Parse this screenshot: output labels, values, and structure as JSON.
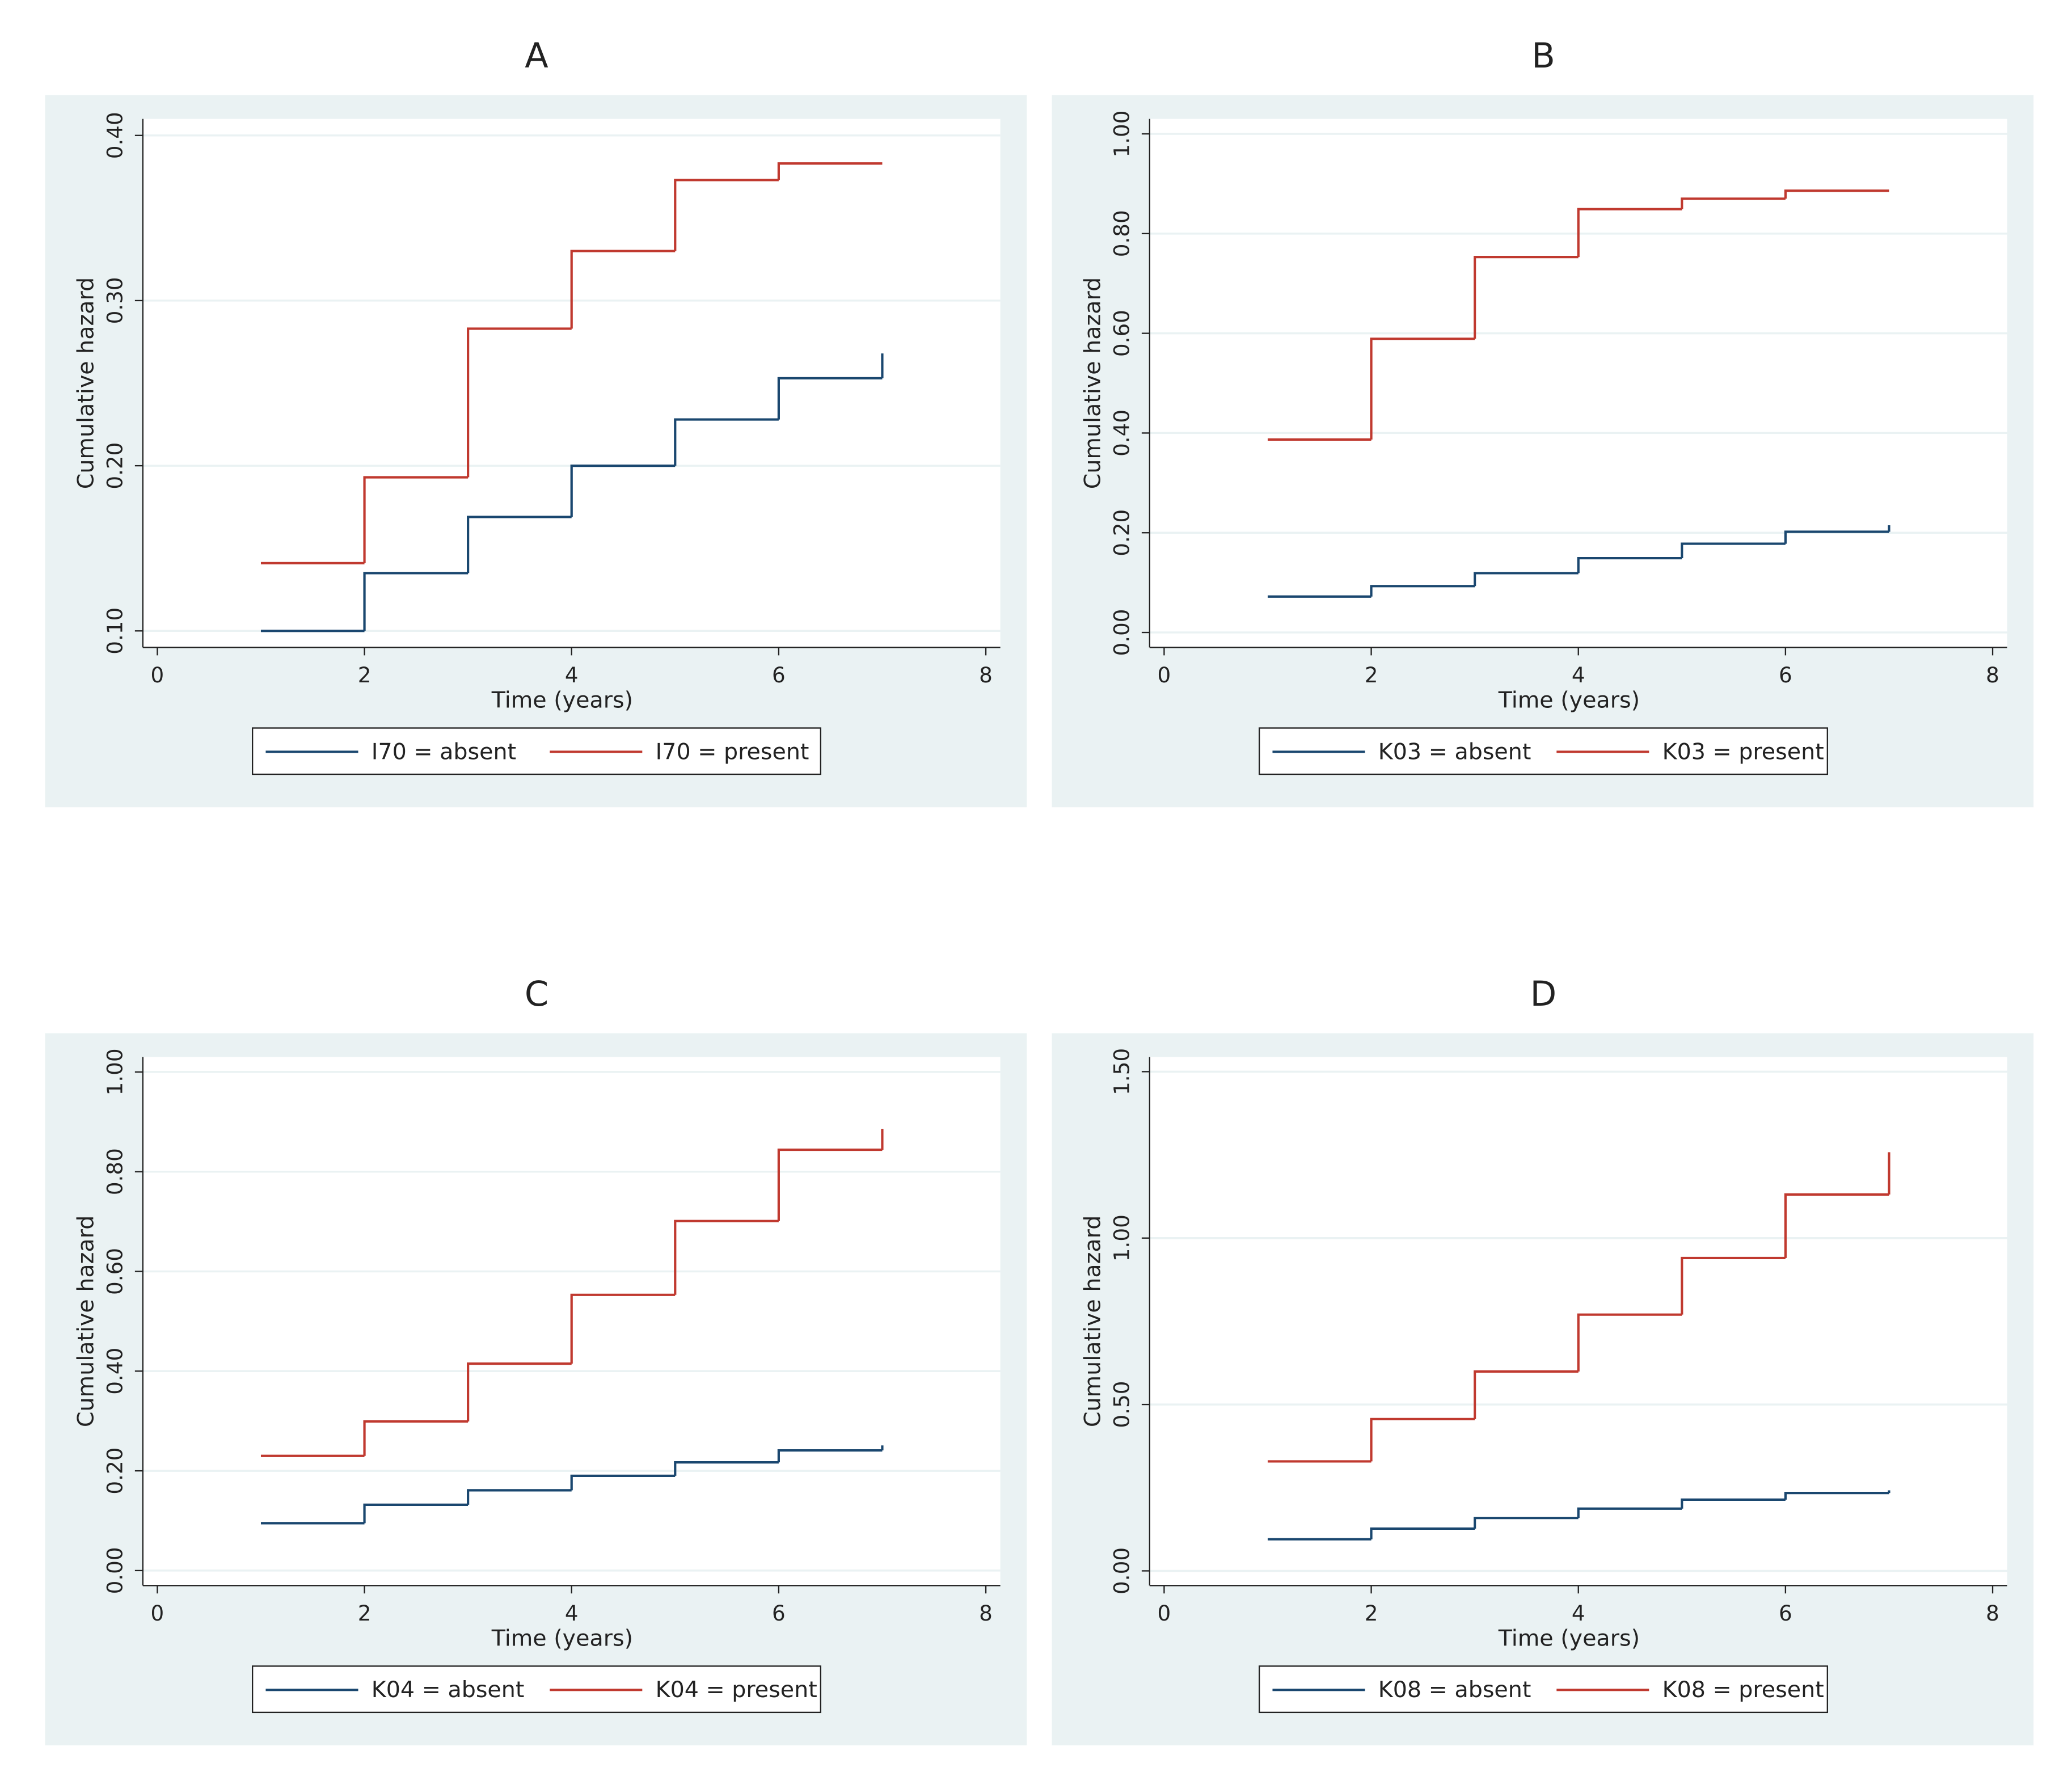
{
  "chart_data": [
    {
      "type": "line",
      "drawstyle": "steps-post",
      "title": "A",
      "xlabel": "Time (years)",
      "ylabel": "Cumulative hazard",
      "xlim": [
        -0.14,
        8.14
      ],
      "xticks": [
        0,
        2,
        4,
        6,
        8
      ],
      "ylim": [
        0.09,
        0.41
      ],
      "yticks": [
        {
          "value": 0.1,
          "label": "0.10"
        },
        {
          "value": 0.2,
          "label": "0.20"
        },
        {
          "value": 0.3,
          "label": "0.30"
        },
        {
          "value": 0.4,
          "label": "0.40"
        }
      ],
      "grid": true,
      "series": [
        {
          "name": "I70 = absent",
          "color": "#1a476f",
          "x": [
            1,
            2,
            3,
            4,
            5,
            6,
            7,
            7
          ],
          "values": [
            0.1,
            0.135,
            0.169,
            0.2,
            0.228,
            0.253,
            0.253,
            0.268
          ]
        },
        {
          "name": "I70 = present",
          "color": "#c0392f",
          "x": [
            1,
            2,
            3,
            4,
            5,
            6,
            7
          ],
          "values": [
            0.141,
            0.193,
            0.283,
            0.33,
            0.373,
            0.383,
            0.383
          ]
        }
      ]
    },
    {
      "type": "line",
      "drawstyle": "steps-post",
      "title": "B",
      "xlabel": "Time (years)",
      "ylabel": "Cumulative hazard",
      "xlim": [
        -0.14,
        8.14
      ],
      "xticks": [
        0,
        2,
        4,
        6,
        8
      ],
      "ylim": [
        -0.03,
        1.03
      ],
      "yticks": [
        {
          "value": 0,
          "label": "0.00"
        },
        {
          "value": 0.2,
          "label": "0.20"
        },
        {
          "value": 0.4,
          "label": "0.40"
        },
        {
          "value": 0.6,
          "label": "0.60"
        },
        {
          "value": 0.8,
          "label": "0.80"
        },
        {
          "value": 1,
          "label": "1.00"
        }
      ],
      "grid": true,
      "series": [
        {
          "name": "K03 = absent",
          "color": "#1a476f",
          "x": [
            1,
            2,
            3,
            4,
            5,
            6,
            7,
            7
          ],
          "values": [
            0.072,
            0.093,
            0.119,
            0.149,
            0.178,
            0.202,
            0.202,
            0.215
          ]
        },
        {
          "name": "K03 = present",
          "color": "#c0392f",
          "x": [
            1,
            2,
            3,
            4,
            5,
            6,
            7
          ],
          "values": [
            0.387,
            0.589,
            0.753,
            0.849,
            0.87,
            0.886,
            0.886
          ]
        }
      ]
    },
    {
      "type": "line",
      "drawstyle": "steps-post",
      "title": "C",
      "xlabel": "Time (years)",
      "ylabel": "Cumulative hazard",
      "xlim": [
        -0.14,
        8.14
      ],
      "xticks": [
        0,
        2,
        4,
        6,
        8
      ],
      "ylim": [
        -0.03,
        1.03
      ],
      "yticks": [
        {
          "value": 0,
          "label": "0.00"
        },
        {
          "value": 0.2,
          "label": "0.20"
        },
        {
          "value": 0.4,
          "label": "0.40"
        },
        {
          "value": 0.6,
          "label": "0.60"
        },
        {
          "value": 0.8,
          "label": "0.80"
        },
        {
          "value": 1,
          "label": "1.00"
        }
      ],
      "grid": true,
      "series": [
        {
          "name": "K04 = absent",
          "color": "#1a476f",
          "x": [
            1,
            2,
            3,
            4,
            5,
            6,
            7,
            7
          ],
          "values": [
            0.095,
            0.132,
            0.161,
            0.19,
            0.217,
            0.241,
            0.241,
            0.251
          ]
        },
        {
          "name": "K04 = present",
          "color": "#c0392f",
          "x": [
            1,
            2,
            3,
            4,
            5,
            6,
            7,
            7
          ],
          "values": [
            0.23,
            0.299,
            0.415,
            0.553,
            0.701,
            0.844,
            0.844,
            0.886
          ]
        }
      ]
    },
    {
      "type": "line",
      "drawstyle": "steps-post",
      "title": "D",
      "xlabel": "Time (years)",
      "ylabel": "Cumulative hazard",
      "xlim": [
        -0.14,
        8.14
      ],
      "xticks": [
        0,
        2,
        4,
        6,
        8
      ],
      "ylim": [
        -0.044,
        1.544
      ],
      "yticks": [
        {
          "value": 0,
          "label": "0.00"
        },
        {
          "value": 0.5,
          "label": "0.50"
        },
        {
          "value": 1,
          "label": "1.00"
        },
        {
          "value": 1.5,
          "label": "1.50"
        }
      ],
      "grid": true,
      "series": [
        {
          "name": "K08 = absent",
          "color": "#1a476f",
          "x": [
            1,
            2,
            3,
            4,
            5,
            6,
            7,
            7
          ],
          "values": [
            0.095,
            0.127,
            0.159,
            0.187,
            0.214,
            0.234,
            0.234,
            0.242
          ]
        },
        {
          "name": "K08 = present",
          "color": "#c0392f",
          "x": [
            1,
            2,
            3,
            4,
            5,
            6,
            7,
            7
          ],
          "values": [
            0.329,
            0.456,
            0.599,
            0.77,
            0.94,
            1.131,
            1.131,
            1.258
          ]
        }
      ]
    }
  ]
}
